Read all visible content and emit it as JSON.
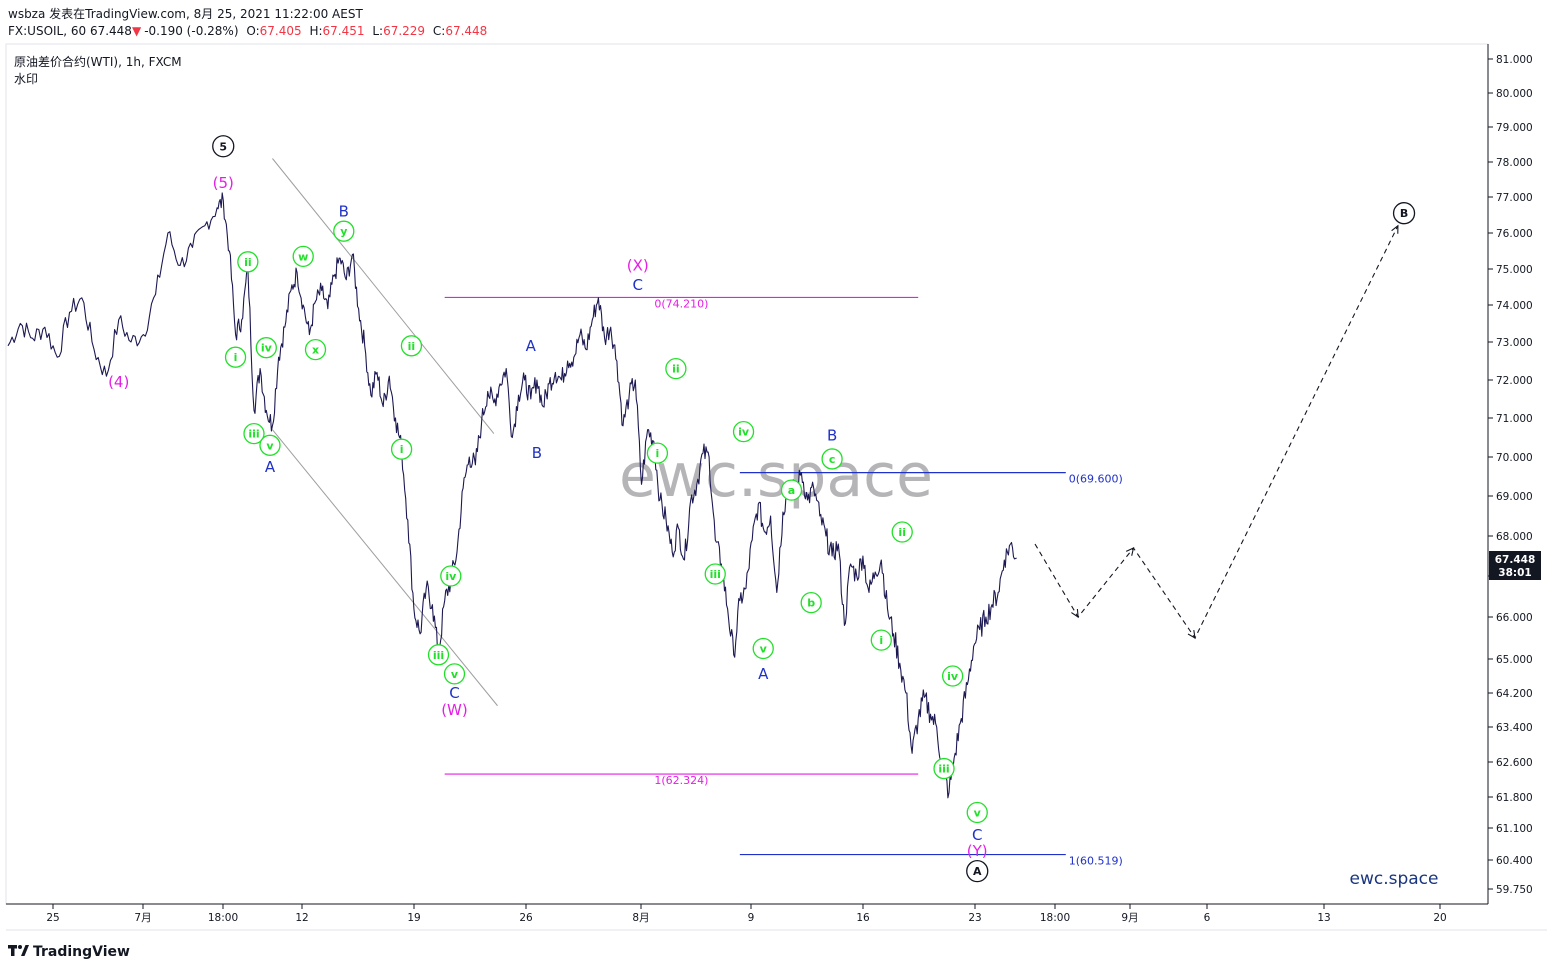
{
  "header": {
    "line1": "wsbza 发表在TradingView.com, 8月 25, 2021 11:22:00 AEST",
    "symbol": "FX:USOIL, 60 ",
    "last": "67.448",
    "change": "-0.190 (-0.28%)",
    "o_label": "O:",
    "o": "67.405",
    "h_label": "H:",
    "h": "67.451",
    "l_label": "L:",
    "l": "67.229",
    "c_label": "C:",
    "c": "67.448",
    "title": "原油差价合约(WTI), 1h, FXCM",
    "subtitle": "水印"
  },
  "watermark": "ewc.space",
  "brand_corner": "ewc.space",
  "footer_logo": "TradingView",
  "colors": {
    "price_line": "#1c1952",
    "green_wave": "#22e02a",
    "blue_wave": "#1f31c8",
    "magenta_wave": "#e51ee5",
    "black_wave": "#131722",
    "fib_magenta": "#e51ee5",
    "fib_blue": "#1f31c8",
    "channel": "#9e9e9e",
    "current_price_bg": "#131722",
    "corner_brand": "#1a3580"
  },
  "chart_data": {
    "type": "line",
    "price_axis": {
      "ticks": [
        "81.000",
        "80.000",
        "79.000",
        "78.000",
        "77.000",
        "76.000",
        "75.000",
        "74.000",
        "73.000",
        "72.000",
        "71.000",
        "70.000",
        "69.000",
        "68.000",
        "67.000",
        "66.000",
        "65.000",
        "64.200",
        "63.400",
        "62.600",
        "61.800",
        "61.100",
        "60.400",
        "59.750"
      ],
      "current_price": "67.448",
      "countdown": "38:01"
    },
    "time_axis": {
      "ticks": [
        "25",
        "7月",
        "18:00",
        "12",
        "19",
        "26",
        "8月",
        "9",
        "16",
        "23",
        "18:00",
        "9月",
        "6",
        "13",
        "20"
      ]
    },
    "series": [
      {
        "values": [
          {
            "t": 0,
            "p": 72.9
          },
          {
            "t": 1,
            "p": 73.5
          },
          {
            "t": 2,
            "p": 73.1
          },
          {
            "t": 3,
            "p": 73.4
          },
          {
            "t": 4,
            "p": 72.6
          },
          {
            "t": 5,
            "p": 73.8
          },
          {
            "t": 6,
            "p": 74.2
          },
          {
            "t": 7,
            "p": 72.8
          },
          {
            "t": 8,
            "p": 72.1
          },
          {
            "t": 9,
            "p": 73.6
          },
          {
            "t": 10,
            "p": 73.0
          },
          {
            "t": 11,
            "p": 73.2
          },
          {
            "t": 12,
            "p": 74.3
          },
          {
            "t": 13,
            "p": 76.0
          },
          {
            "t": 14,
            "p": 75.1
          },
          {
            "t": 15,
            "p": 75.6
          },
          {
            "t": 16,
            "p": 76.2
          },
          {
            "t": 17,
            "p": 76.7
          },
          {
            "t": 17.5,
            "p": 76.9
          },
          {
            "t": 18,
            "p": 75.5
          },
          {
            "t": 18.5,
            "p": 73.2
          },
          {
            "t": 19,
            "p": 73.6
          },
          {
            "t": 19.5,
            "p": 75.0
          },
          {
            "t": 20,
            "p": 71.2
          },
          {
            "t": 20.5,
            "p": 72.3
          },
          {
            "t": 21,
            "p": 71.2
          },
          {
            "t": 21.5,
            "p": 70.8
          },
          {
            "t": 22,
            "p": 72.6
          },
          {
            "t": 22.5,
            "p": 73.4
          },
          {
            "t": 23,
            "p": 74.4
          },
          {
            "t": 23.5,
            "p": 74.9
          },
          {
            "t": 24,
            "p": 74.0
          },
          {
            "t": 24.5,
            "p": 73.2
          },
          {
            "t": 25,
            "p": 74.1
          },
          {
            "t": 25.5,
            "p": 74.4
          },
          {
            "t": 26,
            "p": 73.9
          },
          {
            "t": 26.5,
            "p": 74.8
          },
          {
            "t": 27,
            "p": 75.3
          },
          {
            "t": 27.5,
            "p": 74.7
          },
          {
            "t": 28,
            "p": 75.4
          },
          {
            "t": 28.5,
            "p": 73.9
          },
          {
            "t": 29,
            "p": 72.9
          },
          {
            "t": 29.5,
            "p": 71.6
          },
          {
            "t": 30,
            "p": 72.2
          },
          {
            "t": 30.5,
            "p": 71.3
          },
          {
            "t": 31,
            "p": 72.1
          },
          {
            "t": 31.5,
            "p": 71.0
          },
          {
            "t": 32,
            "p": 70.2
          },
          {
            "t": 32.5,
            "p": 68.4
          },
          {
            "t": 33,
            "p": 66.2
          },
          {
            "t": 33.5,
            "p": 65.6
          },
          {
            "t": 34,
            "p": 66.7
          },
          {
            "t": 34.5,
            "p": 66.3
          },
          {
            "t": 35,
            "p": 65.1
          },
          {
            "t": 35.5,
            "p": 66.4
          },
          {
            "t": 36,
            "p": 66.9
          },
          {
            "t": 36.5,
            "p": 67.6
          },
          {
            "t": 37,
            "p": 69.2
          },
          {
            "t": 37.5,
            "p": 70.0
          },
          {
            "t": 38,
            "p": 69.8
          },
          {
            "t": 38.5,
            "p": 70.9
          },
          {
            "t": 39,
            "p": 71.7
          },
          {
            "t": 39.5,
            "p": 71.4
          },
          {
            "t": 40,
            "p": 71.9
          },
          {
            "t": 40.5,
            "p": 72.3
          },
          {
            "t": 41,
            "p": 70.5
          },
          {
            "t": 41.5,
            "p": 71.6
          },
          {
            "t": 42,
            "p": 72.0
          },
          {
            "t": 42.5,
            "p": 71.5
          },
          {
            "t": 43,
            "p": 72.0
          },
          {
            "t": 43.5,
            "p": 71.3
          },
          {
            "t": 44,
            "p": 71.9
          },
          {
            "t": 44.5,
            "p": 72.2
          },
          {
            "t": 45,
            "p": 72.0
          },
          {
            "t": 45.5,
            "p": 72.5
          },
          {
            "t": 46,
            "p": 72.6
          },
          {
            "t": 46.5,
            "p": 73.2
          },
          {
            "t": 47,
            "p": 72.8
          },
          {
            "t": 47.5,
            "p": 73.6
          },
          {
            "t": 48,
            "p": 74.2
          },
          {
            "t": 48.5,
            "p": 73.1
          },
          {
            "t": 49,
            "p": 73.4
          },
          {
            "t": 49.5,
            "p": 72.5
          },
          {
            "t": 50,
            "p": 70.8
          },
          {
            "t": 50.5,
            "p": 71.6
          },
          {
            "t": 51,
            "p": 72.0
          },
          {
            "t": 51.5,
            "p": 69.3
          },
          {
            "t": 52,
            "p": 70.7
          },
          {
            "t": 52.5,
            "p": 70.4
          },
          {
            "t": 53,
            "p": 68.9
          },
          {
            "t": 53.5,
            "p": 68.4
          },
          {
            "t": 54,
            "p": 67.6
          },
          {
            "t": 54.5,
            "p": 68.2
          },
          {
            "t": 55,
            "p": 67.4
          },
          {
            "t": 55.5,
            "p": 68.9
          },
          {
            "t": 56,
            "p": 69.3
          },
          {
            "t": 56.5,
            "p": 70.1
          },
          {
            "t": 57,
            "p": 70.0
          },
          {
            "t": 57.5,
            "p": 67.9
          },
          {
            "t": 58,
            "p": 67.3
          },
          {
            "t": 58.5,
            "p": 66.2
          },
          {
            "t": 59,
            "p": 65.1
          },
          {
            "t": 59.5,
            "p": 66.4
          },
          {
            "t": 60,
            "p": 66.7
          },
          {
            "t": 60.5,
            "p": 67.9
          },
          {
            "t": 61,
            "p": 68.8
          },
          {
            "t": 61.5,
            "p": 68.1
          },
          {
            "t": 62,
            "p": 68.5
          },
          {
            "t": 62.5,
            "p": 66.6
          },
          {
            "t": 63,
            "p": 68.6
          },
          {
            "t": 63.5,
            "p": 69.3
          },
          {
            "t": 64,
            "p": 69.1
          },
          {
            "t": 64.5,
            "p": 69.6
          },
          {
            "t": 65,
            "p": 68.9
          },
          {
            "t": 65.5,
            "p": 69.2
          },
          {
            "t": 66,
            "p": 68.5
          },
          {
            "t": 66.5,
            "p": 68.0
          },
          {
            "t": 67,
            "p": 67.5
          },
          {
            "t": 67.5,
            "p": 67.8
          },
          {
            "t": 68,
            "p": 65.8
          },
          {
            "t": 68.5,
            "p": 67.3
          },
          {
            "t": 69,
            "p": 67.0
          },
          {
            "t": 69.5,
            "p": 67.5
          },
          {
            "t": 70,
            "p": 66.6
          },
          {
            "t": 70.5,
            "p": 67.1
          },
          {
            "t": 71,
            "p": 67.4
          },
          {
            "t": 71.5,
            "p": 66.2
          },
          {
            "t": 72,
            "p": 65.6
          },
          {
            "t": 72.5,
            "p": 64.9
          },
          {
            "t": 73,
            "p": 64.2
          },
          {
            "t": 73.5,
            "p": 62.8
          },
          {
            "t": 74,
            "p": 63.6
          },
          {
            "t": 74.5,
            "p": 64.1
          },
          {
            "t": 75,
            "p": 63.7
          },
          {
            "t": 75.5,
            "p": 63.4
          },
          {
            "t": 76,
            "p": 62.4
          },
          {
            "t": 76.5,
            "p": 61.9
          },
          {
            "t": 77,
            "p": 62.8
          },
          {
            "t": 77.5,
            "p": 63.6
          },
          {
            "t": 78,
            "p": 64.4
          },
          {
            "t": 78.5,
            "p": 65.3
          },
          {
            "t": 79,
            "p": 65.7
          },
          {
            "t": 79.5,
            "p": 66.0
          },
          {
            "t": 80,
            "p": 66.3
          },
          {
            "t": 80.5,
            "p": 66.6
          },
          {
            "t": 81,
            "p": 67.4
          },
          {
            "t": 81.5,
            "p": 67.8
          },
          {
            "t": 82,
            "p": 67.45
          }
        ]
      }
    ],
    "projection": [
      {
        "t": 83.5,
        "p": 67.8
      },
      {
        "t": 87,
        "p": 66.0
      },
      {
        "t": 91.5,
        "p": 67.7
      },
      {
        "t": 96.5,
        "p": 65.5
      },
      {
        "t": 113,
        "p": 76.2
      }
    ],
    "fib_levels": [
      {
        "label": "0(74.210)",
        "p": 74.21,
        "t0": 35.5,
        "t1": 74,
        "color": "magenta"
      },
      {
        "label": "1(62.324)",
        "p": 62.324,
        "t0": 35.5,
        "t1": 74,
        "color": "magenta"
      },
      {
        "label": "0(69.600)",
        "p": 69.6,
        "t0": 59.5,
        "t1": 86,
        "color": "blue"
      },
      {
        "label": "1(60.519)",
        "p": 60.519,
        "t0": 59.5,
        "t1": 86,
        "color": "blue"
      }
    ],
    "channel_lines": [
      {
        "t0": 21.5,
        "p0": 78.1,
        "t1": 39.5,
        "p1": 70.6
      },
      {
        "t0": 21.5,
        "p0": 70.7,
        "t1": 39.8,
        "p1": 63.9
      }
    ],
    "wave_labels": [
      {
        "text": "5",
        "style": "circle",
        "color": "black",
        "t": 17.5,
        "p": 78.45
      },
      {
        "text": "(5)",
        "style": "plain",
        "color": "magenta",
        "t": 17.5,
        "p": 77.4
      },
      {
        "text": "(4)",
        "style": "plain",
        "color": "magenta",
        "t": 9,
        "p": 71.95
      },
      {
        "text": "i",
        "style": "circle",
        "color": "green",
        "t": 18.5,
        "p": 72.6
      },
      {
        "text": "ii",
        "style": "circle",
        "color": "green",
        "t": 19.5,
        "p": 75.2
      },
      {
        "text": "iii",
        "style": "circle",
        "color": "green",
        "t": 20,
        "p": 70.6
      },
      {
        "text": "iv",
        "style": "circle",
        "color": "green",
        "t": 21,
        "p": 72.85
      },
      {
        "text": "v",
        "style": "circle",
        "color": "green",
        "t": 21.3,
        "p": 70.3
      },
      {
        "text": "A",
        "style": "plain",
        "color": "blue",
        "t": 21.3,
        "p": 69.75
      },
      {
        "text": "w",
        "style": "circle",
        "color": "green",
        "t": 24,
        "p": 75.35
      },
      {
        "text": "x",
        "style": "circle",
        "color": "green",
        "t": 25,
        "p": 72.8
      },
      {
        "text": "y",
        "style": "circle",
        "color": "green",
        "t": 27.3,
        "p": 76.05
      },
      {
        "text": "B",
        "style": "plain",
        "color": "blue",
        "t": 27.3,
        "p": 76.6
      },
      {
        "text": "ii",
        "style": "circle",
        "color": "green",
        "t": 32.8,
        "p": 72.9
      },
      {
        "text": "i",
        "style": "circle",
        "color": "green",
        "t": 32,
        "p": 70.2
      },
      {
        "text": "iv",
        "style": "circle",
        "color": "green",
        "t": 36,
        "p": 67.0
      },
      {
        "text": "iii",
        "style": "circle",
        "color": "green",
        "t": 35,
        "p": 65.1
      },
      {
        "text": "v",
        "style": "circle",
        "color": "green",
        "t": 36.3,
        "p": 64.65
      },
      {
        "text": "C",
        "style": "plain",
        "color": "blue",
        "t": 36.3,
        "p": 64.2
      },
      {
        "text": "(W)",
        "style": "plain",
        "color": "magenta",
        "t": 36.3,
        "p": 63.8
      },
      {
        "text": "A",
        "style": "plain",
        "color": "blue",
        "t": 42.5,
        "p": 72.9
      },
      {
        "text": "B",
        "style": "plain",
        "color": "blue",
        "t": 43,
        "p": 70.1
      },
      {
        "text": "(X)",
        "style": "plain",
        "color": "magenta",
        "t": 51.2,
        "p": 75.1
      },
      {
        "text": "C",
        "style": "plain",
        "color": "blue",
        "t": 51.2,
        "p": 74.55
      },
      {
        "text": "ii",
        "style": "circle",
        "color": "green",
        "t": 54.3,
        "p": 72.3
      },
      {
        "text": "i",
        "style": "circle",
        "color": "green",
        "t": 52.8,
        "p": 70.1
      },
      {
        "text": "iv",
        "style": "circle",
        "color": "green",
        "t": 59.8,
        "p": 70.65
      },
      {
        "text": "iii",
        "style": "circle",
        "color": "green",
        "t": 57.5,
        "p": 67.05
      },
      {
        "text": "v",
        "style": "circle",
        "color": "green",
        "t": 61.4,
        "p": 65.25
      },
      {
        "text": "A",
        "style": "plain",
        "color": "blue",
        "t": 61.4,
        "p": 64.65
      },
      {
        "text": "a",
        "style": "circle",
        "color": "green",
        "t": 63.7,
        "p": 69.15
      },
      {
        "text": "c",
        "style": "circle",
        "color": "green",
        "t": 67,
        "p": 69.95
      },
      {
        "text": "B",
        "style": "plain",
        "color": "blue",
        "t": 67,
        "p": 70.55
      },
      {
        "text": "b",
        "style": "circle",
        "color": "green",
        "t": 65.3,
        "p": 66.35
      },
      {
        "text": "ii",
        "style": "circle",
        "color": "green",
        "t": 72.7,
        "p": 68.1
      },
      {
        "text": "i",
        "style": "circle",
        "color": "green",
        "t": 71,
        "p": 65.45
      },
      {
        "text": "iv",
        "style": "circle",
        "color": "green",
        "t": 76.8,
        "p": 64.6
      },
      {
        "text": "iii",
        "style": "circle",
        "color": "green",
        "t": 76.1,
        "p": 62.45
      },
      {
        "text": "v",
        "style": "circle",
        "color": "green",
        "t": 78.8,
        "p": 61.45
      },
      {
        "text": "C",
        "style": "plain",
        "color": "blue",
        "t": 78.8,
        "p": 60.95
      },
      {
        "text": "(Y)",
        "style": "plain",
        "color": "magenta",
        "t": 78.8,
        "p": 60.6
      },
      {
        "text": "A",
        "style": "circle",
        "color": "black",
        "t": 78.8,
        "p": 60.15
      },
      {
        "text": "B",
        "style": "circle",
        "color": "black",
        "t": 113.5,
        "p": 76.55
      }
    ]
  }
}
